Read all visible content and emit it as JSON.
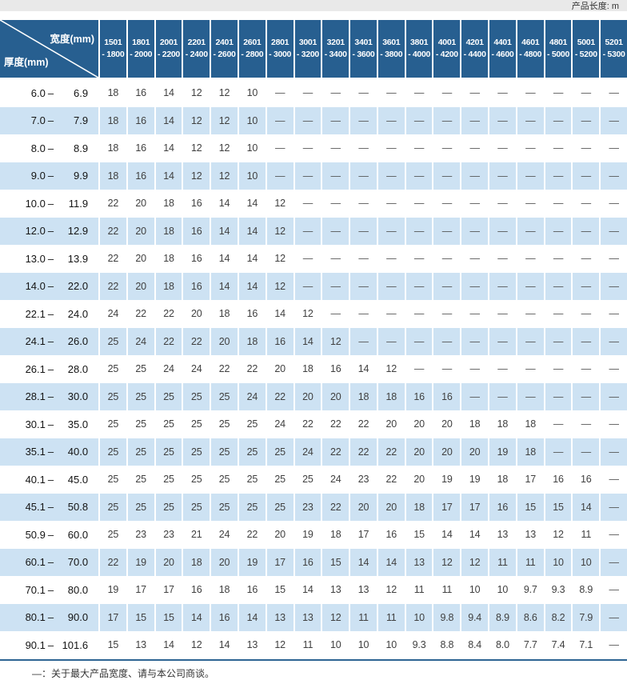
{
  "page": {
    "unit_label": "产品长度: m",
    "footnote": "—：关于最大产品宽度、请与本公司商谈。"
  },
  "table": {
    "corner": {
      "width_label": "宽度(mm)",
      "thickness_label": "厚度(mm)"
    },
    "columns": [
      {
        "line1": "1501",
        "line2": "- 1800"
      },
      {
        "line1": "1801",
        "line2": "- 2000"
      },
      {
        "line1": "2001",
        "line2": "- 2200"
      },
      {
        "line1": "2201",
        "line2": "- 2400"
      },
      {
        "line1": "2401",
        "line2": "- 2600"
      },
      {
        "line1": "2601",
        "line2": "- 2800"
      },
      {
        "line1": "2801",
        "line2": "- 3000"
      },
      {
        "line1": "3001",
        "line2": "- 3200"
      },
      {
        "line1": "3201",
        "line2": "- 3400"
      },
      {
        "line1": "3401",
        "line2": "- 3600"
      },
      {
        "line1": "3601",
        "line2": "- 3800"
      },
      {
        "line1": "3801",
        "line2": "- 4000"
      },
      {
        "line1": "4001",
        "line2": "- 4200"
      },
      {
        "line1": "4201",
        "line2": "- 4400"
      },
      {
        "line1": "4401",
        "line2": "- 4600"
      },
      {
        "line1": "4601",
        "line2": "- 4800"
      },
      {
        "line1": "4801",
        "line2": "- 5000"
      },
      {
        "line1": "5001",
        "line2": "- 5200"
      },
      {
        "line1": "5201",
        "line2": "- 5300"
      }
    ],
    "rows": [
      {
        "min": "6.0",
        "max": "6.9",
        "values": [
          "18",
          "16",
          "14",
          "12",
          "12",
          "10",
          "—",
          "—",
          "—",
          "—",
          "—",
          "—",
          "—",
          "—",
          "—",
          "—",
          "—",
          "—",
          "—"
        ]
      },
      {
        "min": "7.0",
        "max": "7.9",
        "values": [
          "18",
          "16",
          "14",
          "12",
          "12",
          "10",
          "—",
          "—",
          "—",
          "—",
          "—",
          "—",
          "—",
          "—",
          "—",
          "—",
          "—",
          "—",
          "—"
        ]
      },
      {
        "min": "8.0",
        "max": "8.9",
        "values": [
          "18",
          "16",
          "14",
          "12",
          "12",
          "10",
          "—",
          "—",
          "—",
          "—",
          "—",
          "—",
          "—",
          "—",
          "—",
          "—",
          "—",
          "—",
          "—"
        ]
      },
      {
        "min": "9.0",
        "max": "9.9",
        "values": [
          "18",
          "16",
          "14",
          "12",
          "12",
          "10",
          "—",
          "—",
          "—",
          "—",
          "—",
          "—",
          "—",
          "—",
          "—",
          "—",
          "—",
          "—",
          "—"
        ]
      },
      {
        "min": "10.0",
        "max": "11.9",
        "values": [
          "22",
          "20",
          "18",
          "16",
          "14",
          "14",
          "12",
          "—",
          "—",
          "—",
          "—",
          "—",
          "—",
          "—",
          "—",
          "—",
          "—",
          "—",
          "—"
        ]
      },
      {
        "min": "12.0",
        "max": "12.9",
        "values": [
          "22",
          "20",
          "18",
          "16",
          "14",
          "14",
          "12",
          "—",
          "—",
          "—",
          "—",
          "—",
          "—",
          "—",
          "—",
          "—",
          "—",
          "—",
          "—"
        ]
      },
      {
        "min": "13.0",
        "max": "13.9",
        "values": [
          "22",
          "20",
          "18",
          "16",
          "14",
          "14",
          "12",
          "—",
          "—",
          "—",
          "—",
          "—",
          "—",
          "—",
          "—",
          "—",
          "—",
          "—",
          "—"
        ]
      },
      {
        "min": "14.0",
        "max": "22.0",
        "values": [
          "22",
          "20",
          "18",
          "16",
          "14",
          "14",
          "12",
          "—",
          "—",
          "—",
          "—",
          "—",
          "—",
          "—",
          "—",
          "—",
          "—",
          "—",
          "—"
        ]
      },
      {
        "min": "22.1",
        "max": "24.0",
        "values": [
          "24",
          "22",
          "22",
          "20",
          "18",
          "16",
          "14",
          "12",
          "—",
          "—",
          "—",
          "—",
          "—",
          "—",
          "—",
          "—",
          "—",
          "—",
          "—"
        ]
      },
      {
        "min": "24.1",
        "max": "26.0",
        "values": [
          "25",
          "24",
          "22",
          "22",
          "20",
          "18",
          "16",
          "14",
          "12",
          "—",
          "—",
          "—",
          "—",
          "—",
          "—",
          "—",
          "—",
          "—",
          "—"
        ]
      },
      {
        "min": "26.1",
        "max": "28.0",
        "values": [
          "25",
          "25",
          "24",
          "24",
          "22",
          "22",
          "20",
          "18",
          "16",
          "14",
          "12",
          "—",
          "—",
          "—",
          "—",
          "—",
          "—",
          "—",
          "—"
        ]
      },
      {
        "min": "28.1",
        "max": "30.0",
        "values": [
          "25",
          "25",
          "25",
          "25",
          "25",
          "24",
          "22",
          "20",
          "20",
          "18",
          "18",
          "16",
          "16",
          "—",
          "—",
          "—",
          "—",
          "—",
          "—"
        ]
      },
      {
        "min": "30.1",
        "max": "35.0",
        "values": [
          "25",
          "25",
          "25",
          "25",
          "25",
          "25",
          "24",
          "22",
          "22",
          "22",
          "20",
          "20",
          "20",
          "18",
          "18",
          "18",
          "—",
          "—",
          "—"
        ]
      },
      {
        "min": "35.1",
        "max": "40.0",
        "values": [
          "25",
          "25",
          "25",
          "25",
          "25",
          "25",
          "25",
          "24",
          "22",
          "22",
          "22",
          "20",
          "20",
          "20",
          "19",
          "18",
          "—",
          "—",
          "—"
        ]
      },
      {
        "min": "40.1",
        "max": "45.0",
        "values": [
          "25",
          "25",
          "25",
          "25",
          "25",
          "25",
          "25",
          "25",
          "24",
          "23",
          "22",
          "20",
          "19",
          "19",
          "18",
          "17",
          "16",
          "16",
          "—"
        ]
      },
      {
        "min": "45.1",
        "max": "50.8",
        "values": [
          "25",
          "25",
          "25",
          "25",
          "25",
          "25",
          "25",
          "23",
          "22",
          "20",
          "20",
          "18",
          "17",
          "17",
          "16",
          "15",
          "15",
          "14",
          "—"
        ]
      },
      {
        "min": "50.9",
        "max": "60.0",
        "values": [
          "25",
          "23",
          "23",
          "21",
          "24",
          "22",
          "20",
          "19",
          "18",
          "17",
          "16",
          "15",
          "14",
          "14",
          "13",
          "13",
          "12",
          "11",
          "—"
        ]
      },
      {
        "min": "60.1",
        "max": "70.0",
        "values": [
          "22",
          "19",
          "20",
          "18",
          "20",
          "19",
          "17",
          "16",
          "15",
          "14",
          "14",
          "13",
          "12",
          "12",
          "11",
          "11",
          "10",
          "10",
          "—"
        ]
      },
      {
        "min": "70.1",
        "max": "80.0",
        "values": [
          "19",
          "17",
          "17",
          "16",
          "18",
          "16",
          "15",
          "14",
          "13",
          "13",
          "12",
          "11",
          "11",
          "10",
          "10",
          "9.7",
          "9.3",
          "8.9",
          "—"
        ]
      },
      {
        "min": "80.1",
        "max": "90.0",
        "values": [
          "17",
          "15",
          "15",
          "14",
          "16",
          "14",
          "13",
          "13",
          "12",
          "11",
          "11",
          "10",
          "9.8",
          "9.4",
          "8.9",
          "8.6",
          "8.2",
          "7.9",
          "—"
        ]
      },
      {
        "min": "90.1",
        "max": "101.6",
        "values": [
          "15",
          "13",
          "14",
          "12",
          "14",
          "13",
          "12",
          "11",
          "10",
          "10",
          "10",
          "9.3",
          "8.8",
          "8.4",
          "8.0",
          "7.7",
          "7.4",
          "7.1",
          "—"
        ]
      }
    ]
  },
  "colors": {
    "header_blue": "#275f90",
    "stripe_blue": "#cde2f3",
    "topbar_gray": "#e9e9e9",
    "bottom_border": "#2e6593"
  }
}
